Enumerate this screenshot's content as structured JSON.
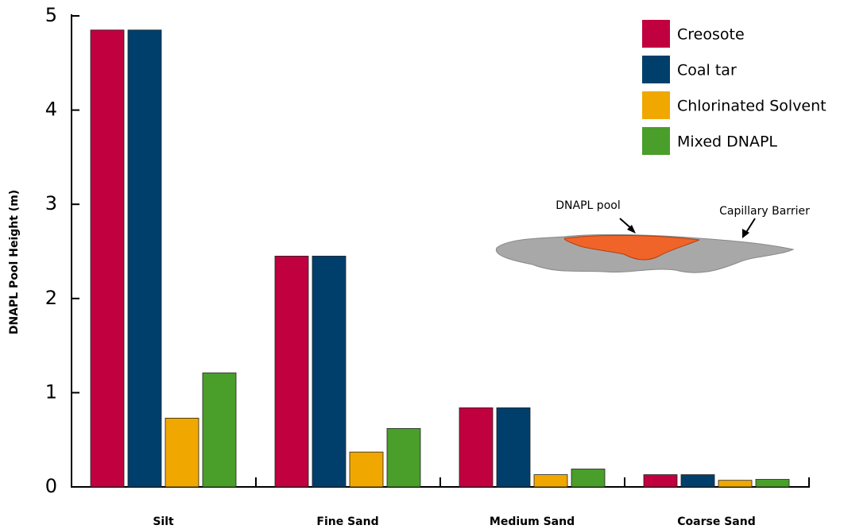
{
  "chart_data": {
    "type": "bar",
    "ylabel": "DNAPL Pool Height (m)",
    "categories": [
      "Silt",
      "Fine Sand",
      "Medium Sand",
      "Coarse Sand"
    ],
    "series": [
      {
        "name": "Creosote",
        "color": "#c0003f",
        "values": [
          4.85,
          2.45,
          0.84,
          0.13
        ]
      },
      {
        "name": "Coal tar",
        "color": "#003f6b",
        "values": [
          4.85,
          2.45,
          0.84,
          0.13
        ]
      },
      {
        "name": "Chlorinated Solvent",
        "color": "#f0a800",
        "values": [
          0.73,
          0.37,
          0.13,
          0.07
        ]
      },
      {
        "name": "Mixed DNAPL",
        "color": "#4a9e2a",
        "values": [
          1.21,
          0.62,
          0.19,
          0.08
        ]
      }
    ],
    "ylim": [
      0,
      5
    ],
    "yticks": [
      0,
      1,
      2,
      3,
      4,
      5
    ],
    "grid": false,
    "legend": "upper right",
    "annotations": [
      "DNAPL pool",
      "Capillary Barrier"
    ]
  }
}
